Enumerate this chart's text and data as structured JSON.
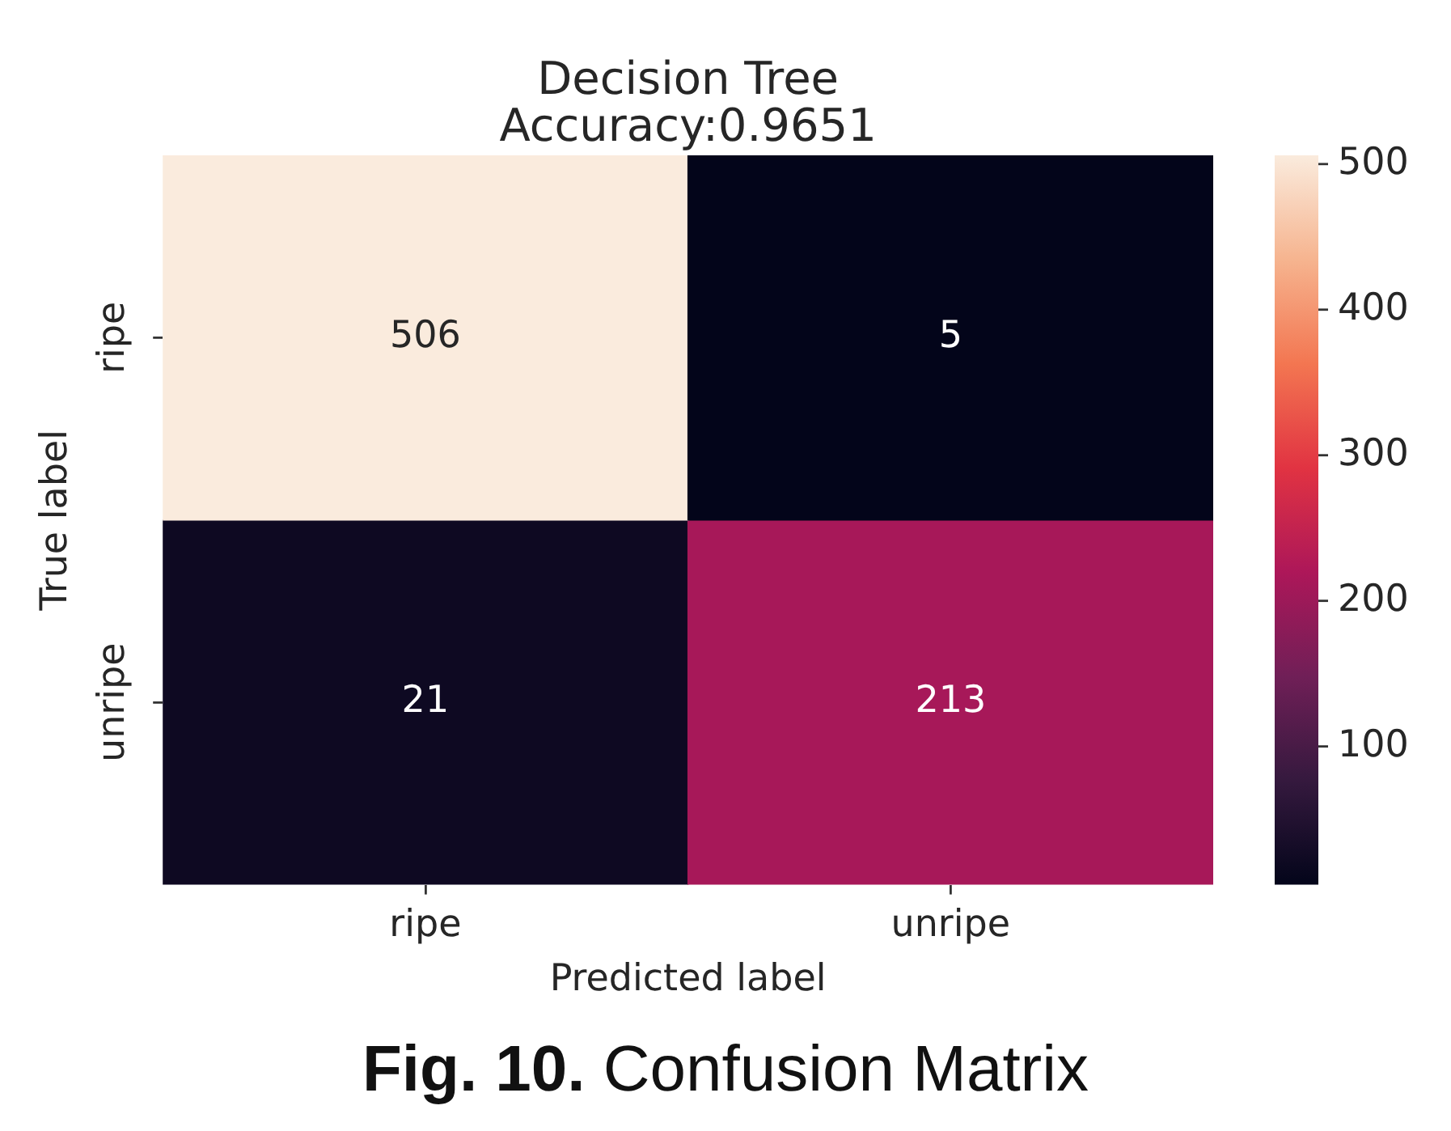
{
  "chart_data": {
    "type": "heatmap",
    "title": "Decision Tree\nAccuracy:0.9651",
    "xlabel": "Predicted label",
    "ylabel": "True label",
    "categories": [
      "ripe",
      "unripe"
    ],
    "y_categories": [
      "ripe",
      "unripe"
    ],
    "cells": [
      [
        506,
        5
      ],
      [
        21,
        213
      ]
    ],
    "data_labels": true,
    "clim": [
      5,
      506
    ],
    "cticks": [
      100,
      200,
      300,
      400,
      500
    ],
    "annotations": [
      "Fig. 10. Confusion Matrix"
    ]
  }
}
